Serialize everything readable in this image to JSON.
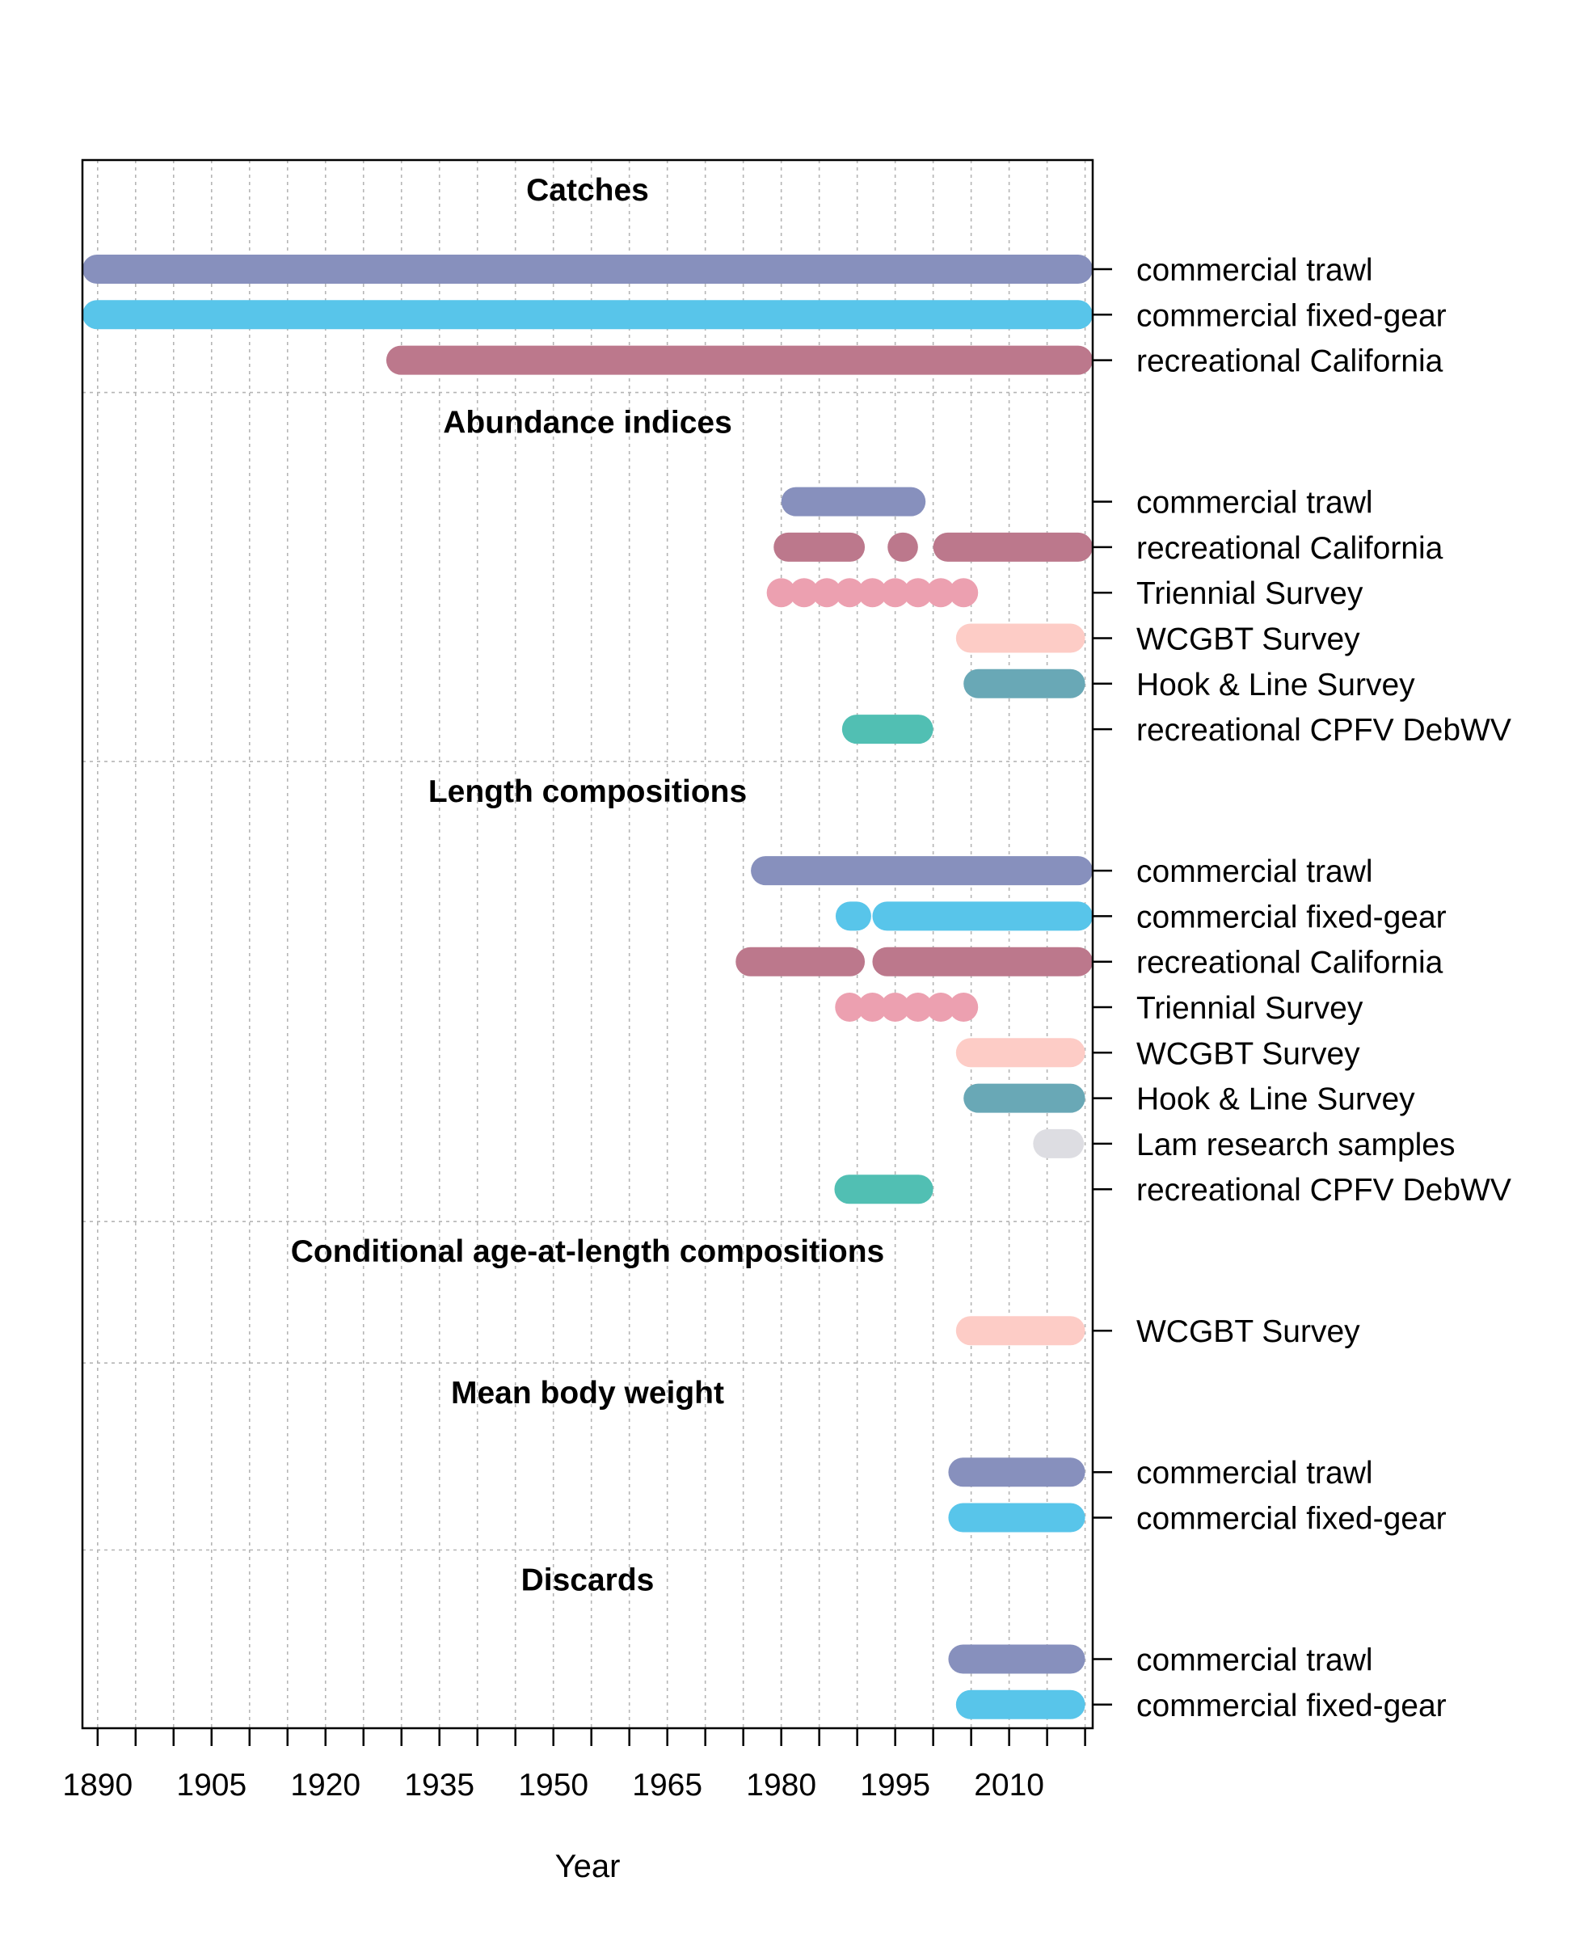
{
  "chart_data": {
    "type": "timeline",
    "xlabel": "Year",
    "xlim": [
      1888,
      2021
    ],
    "x_ticks": [
      1890,
      1905,
      1920,
      1935,
      1950,
      1965,
      1980,
      1995,
      2010
    ],
    "colors": {
      "commercial_trawl": "#8790BD",
      "commercial_fixed_gear": "#58C5EA",
      "recreational_california": "#BC788C",
      "triennial_survey": "#ECA0B0",
      "wcgbt_survey": "#FDCCC6",
      "hook_line_survey": "#69A8B6",
      "recreational_cpfv_debwv": "#51BFB3",
      "lam_research": "#DDDDE2"
    },
    "sections": [
      {
        "title": "Catches",
        "rows": [
          {
            "label": "commercial trawl",
            "color_key": "commercial_trawl",
            "segments": [
              [
                1888,
                2021
              ]
            ]
          },
          {
            "label": "commercial fixed-gear",
            "color_key": "commercial_fixed_gear",
            "segments": [
              [
                1888,
                2021
              ]
            ]
          },
          {
            "label": "recreational California",
            "color_key": "recreational_california",
            "segments": [
              [
                1928,
                2021
              ]
            ]
          }
        ]
      },
      {
        "title": "Abundance indices",
        "rows": [
          {
            "label": "commercial trawl",
            "color_key": "commercial_trawl",
            "segments": [
              [
                1980,
                1999
              ]
            ]
          },
          {
            "label": "recreational California",
            "color_key": "recreational_california",
            "segments": [
              [
                1979,
                1991
              ],
              [
                1994,
                1998
              ],
              [
                2000,
                2021
              ]
            ]
          },
          {
            "label": "Triennial Survey",
            "color_key": "triennial_survey",
            "points": [
              1980,
              1983,
              1986,
              1989,
              1992,
              1995,
              1998,
              2001,
              2004
            ]
          },
          {
            "label": "WCGBT Survey",
            "color_key": "wcgbt_survey",
            "segments": [
              [
                2003,
                2020
              ]
            ]
          },
          {
            "label": "Hook & Line Survey",
            "color_key": "hook_line_survey",
            "segments": [
              [
                2004,
                2020
              ]
            ]
          },
          {
            "label": "recreational CPFV DebWV",
            "color_key": "recreational_cpfv_debwv",
            "segments": [
              [
                1988,
                2000
              ]
            ]
          }
        ]
      },
      {
        "title": "Length compositions",
        "rows": [
          {
            "label": "commercial trawl",
            "color_key": "commercial_trawl",
            "segments": [
              [
                1976,
                2021
              ]
            ]
          },
          {
            "label": "commercial fixed-gear",
            "color_key": "commercial_fixed_gear",
            "segments": [
              [
                1988,
                1991
              ],
              [
                1992,
                2021
              ]
            ]
          },
          {
            "label": "recreational California",
            "color_key": "recreational_california",
            "segments": [
              [
                1974,
                1991
              ],
              [
                1992,
                2021
              ]
            ]
          },
          {
            "label": "Triennial Survey",
            "color_key": "triennial_survey",
            "points": [
              1989,
              1992,
              1995,
              1998,
              2001,
              2004
            ]
          },
          {
            "label": "WCGBT Survey",
            "color_key": "wcgbt_survey",
            "segments": [
              [
                2003,
                2020
              ]
            ]
          },
          {
            "label": "Hook & Line Survey",
            "color_key": "hook_line_survey",
            "segments": [
              [
                2004,
                2020
              ]
            ]
          },
          {
            "label": "Lam research samples",
            "color_key": "lam_research",
            "segments": [
              [
                2016,
                2017
              ]
            ]
          },
          {
            "label": "recreational CPFV DebWV",
            "color_key": "recreational_cpfv_debwv",
            "segments": [
              [
                1987,
                2000
              ]
            ]
          }
        ]
      },
      {
        "title": "Conditional age-at-length compositions",
        "rows": [
          {
            "label": "WCGBT Survey",
            "color_key": "wcgbt_survey",
            "segments": [
              [
                2003,
                2020
              ]
            ]
          }
        ]
      },
      {
        "title": "Mean body weight",
        "rows": [
          {
            "label": "commercial trawl",
            "color_key": "commercial_trawl",
            "segments": [
              [
                2002,
                2020
              ]
            ]
          },
          {
            "label": "commercial fixed-gear",
            "color_key": "commercial_fixed_gear",
            "segments": [
              [
                2002,
                2020
              ]
            ]
          }
        ]
      },
      {
        "title": "Discards",
        "rows": [
          {
            "label": "commercial trawl",
            "color_key": "commercial_trawl",
            "segments": [
              [
                2002,
                2020
              ]
            ]
          },
          {
            "label": "commercial fixed-gear",
            "color_key": "commercial_fixed_gear",
            "segments": [
              [
                2003,
                2020
              ]
            ]
          }
        ]
      }
    ]
  }
}
